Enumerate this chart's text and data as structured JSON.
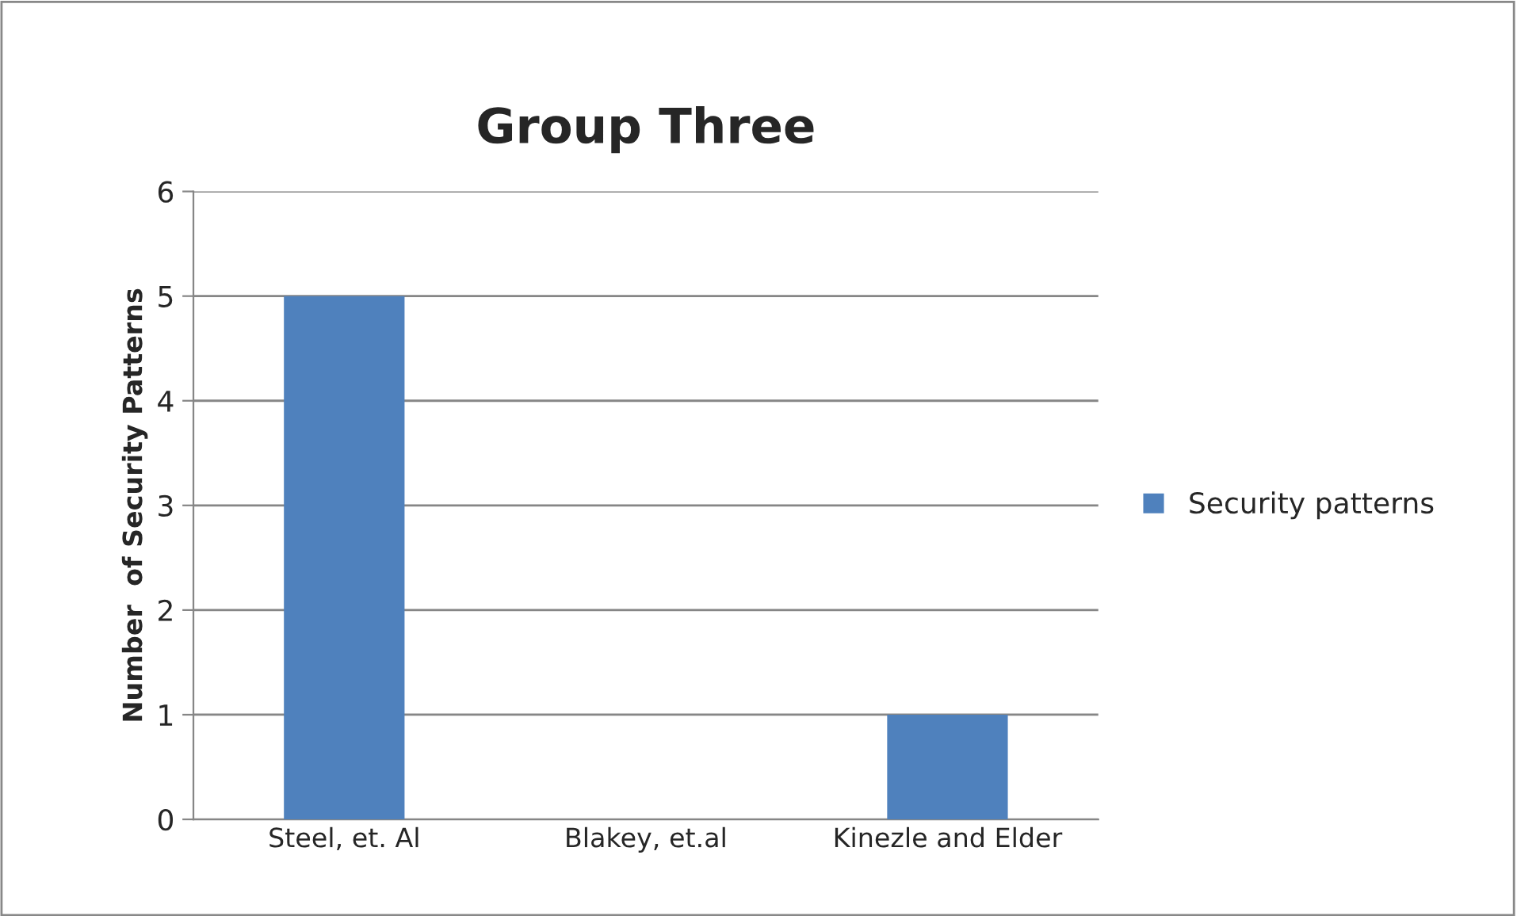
{
  "chart_data": {
    "type": "bar",
    "title": "Group Three",
    "ylabel": "Number  of Security Patterns",
    "categories": [
      "Steel, et. Al",
      "Blakey, et.al",
      "Kinezle and Elder"
    ],
    "series": [
      {
        "name": "Security patterns",
        "color": "#4f81bd",
        "values": [
          5,
          0,
          1
        ]
      }
    ],
    "ylim": [
      0,
      6
    ],
    "yticks": [
      0,
      1,
      2,
      3,
      4,
      5,
      6
    ],
    "grid": "y",
    "legend": "right"
  }
}
